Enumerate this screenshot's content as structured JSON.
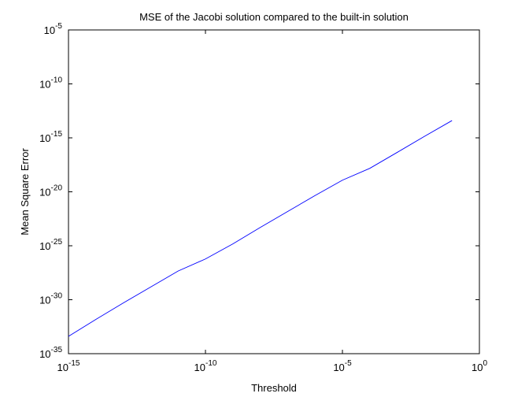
{
  "chart_data": {
    "type": "line",
    "title": "MSE of the Jacobi solution compared to the built-in solution",
    "xlabel": "Threshold",
    "ylabel": "Mean Square Error",
    "xscale": "log",
    "yscale": "log",
    "xlim": [
      1e-15,
      1
    ],
    "ylim": [
      1e-35,
      1e-05
    ],
    "grid": false,
    "xticks": [
      {
        "value": 1e-15,
        "base": "10",
        "exp": "-15"
      },
      {
        "value": 1e-10,
        "base": "10",
        "exp": "-10"
      },
      {
        "value": 1e-05,
        "base": "10",
        "exp": "-5"
      },
      {
        "value": 1,
        "base": "10",
        "exp": "0"
      }
    ],
    "yticks": [
      {
        "value": 1e-35,
        "base": "10",
        "exp": "-35"
      },
      {
        "value": 1e-30,
        "base": "10",
        "exp": "-30"
      },
      {
        "value": 1e-25,
        "base": "10",
        "exp": "-25"
      },
      {
        "value": 1e-20,
        "base": "10",
        "exp": "-20"
      },
      {
        "value": 1e-15,
        "base": "10",
        "exp": "-15"
      },
      {
        "value": 1e-10,
        "base": "10",
        "exp": "-10"
      },
      {
        "value": 1e-05,
        "base": "10",
        "exp": "-5"
      }
    ],
    "series": [
      {
        "color": "#0000ff",
        "x": [
          1e-15,
          1e-14,
          1e-13,
          1e-12,
          1e-11,
          1e-10,
          1e-09,
          1e-08,
          1e-07,
          1e-06,
          1e-05,
          0.0001,
          0.001,
          0.01,
          0.1
        ],
        "y": [
          4e-34,
          1.5e-32,
          5e-31,
          1.5e-29,
          4.5e-28,
          6e-27,
          1.5e-25,
          5e-24,
          1.5e-22,
          4.5e-21,
          1.2e-19,
          1.5e-18,
          4.5e-17,
          1.4e-15,
          4e-14
        ]
      }
    ]
  }
}
